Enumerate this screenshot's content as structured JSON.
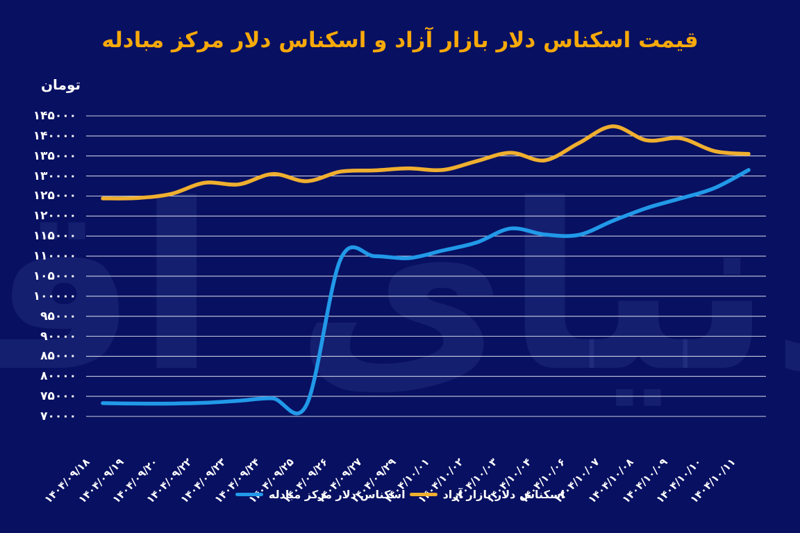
{
  "title": "قیمت اسکناس دلار بازار آزاد و اسکناس دلار مرکز مبادله",
  "unit_label": "تومان",
  "watermark_text": "دنیای اقتصاد",
  "colors": {
    "background": "#081061",
    "title": "#f7a90a",
    "grid": "#e9ecf8",
    "axis_text": "#ffffff",
    "free_market_line": "#efaf2f",
    "exchange_center_line": "#2199e8"
  },
  "legend": {
    "items": [
      {
        "label": "اسکناس دلار بازار آزاد",
        "series": "free_market"
      },
      {
        "label": "اسکناس دلار مرکز مبادله",
        "series": "exchange_center"
      }
    ]
  },
  "chart_data": {
    "type": "line",
    "title": "قیمت اسکناس دلار بازار آزاد و اسکناس دلار مرکز مبادله",
    "unit": "تومان",
    "grid": true,
    "legend_position": "bottom",
    "smooth": true,
    "ylim": [
      70000,
      145000
    ],
    "ytick_step": 5000,
    "ytick_labels_top_to_bottom": [
      "۱۴۵۰۰۰",
      "۱۴۰۰۰۰",
      "۱۳۵۰۰۰",
      "۱۳۰۰۰۰",
      "۱۲۵۰۰۰",
      "۱۲۰۰۰۰",
      "۱۱۵۰۰۰",
      "۱۱۰۰۰۰",
      "۱۰۵۰۰۰",
      "۱۰۰۰۰۰",
      "۹۵۰۰۰",
      "۹۰۰۰۰",
      "۸۵۰۰۰",
      "۸۰۰۰۰",
      "۷۵۰۰۰",
      "۷۰۰۰۰"
    ],
    "categories": [
      "۱۴۰۴/۰۹/۱۸",
      "۱۴۰۴/۰۹/۱۹",
      "۱۴۰۴/۰۹/۲۰",
      "۱۴۰۴/۰۹/۲۲",
      "۱۴۰۴/۰۹/۲۳",
      "۱۴۰۴/۰۹/۲۴",
      "۱۴۰۴/۰۹/۲۵",
      "۱۴۰۴/۰۹/۲۶",
      "۱۴۰۴/۰۹/۲۷",
      "۱۴۰۴/۰۹/۲۹",
      "۱۴۰۴/۱۰/۰۱",
      "۱۴۰۴/۱۰/۰۲",
      "۱۴۰۴/۱۰/۰۳",
      "۱۴۰۴/۱۰/۰۴",
      "۱۴۰۴/۱۰/۰۶",
      "۱۴۰۴/۱۰/۰۷",
      "۱۴۰۴/۱۰/۰۸",
      "۱۴۰۴/۱۰/۰۹",
      "۱۴۰۴/۱۰/۱۰",
      "۱۴۰۴/۱۰/۱۱"
    ],
    "series": [
      {
        "id": "free_market",
        "name": "اسکناس دلار بازار آزاد",
        "color": "#efaf2f",
        "values": [
          124400,
          124500,
          125500,
          128300,
          127900,
          130500,
          128700,
          131100,
          131400,
          131900,
          131500,
          133700,
          135800,
          133900,
          138200,
          142400,
          138900,
          139400,
          136200,
          135500
        ]
      },
      {
        "id": "exchange_center",
        "name": "اسکناس دلار مرکز مبادله",
        "color": "#2199e8",
        "values": [
          73300,
          73200,
          73200,
          73400,
          73900,
          74500,
          73000,
          109300,
          110000,
          109500,
          111400,
          113400,
          116900,
          115400,
          115300,
          118800,
          122000,
          124400,
          127000,
          131500
        ]
      }
    ]
  }
}
